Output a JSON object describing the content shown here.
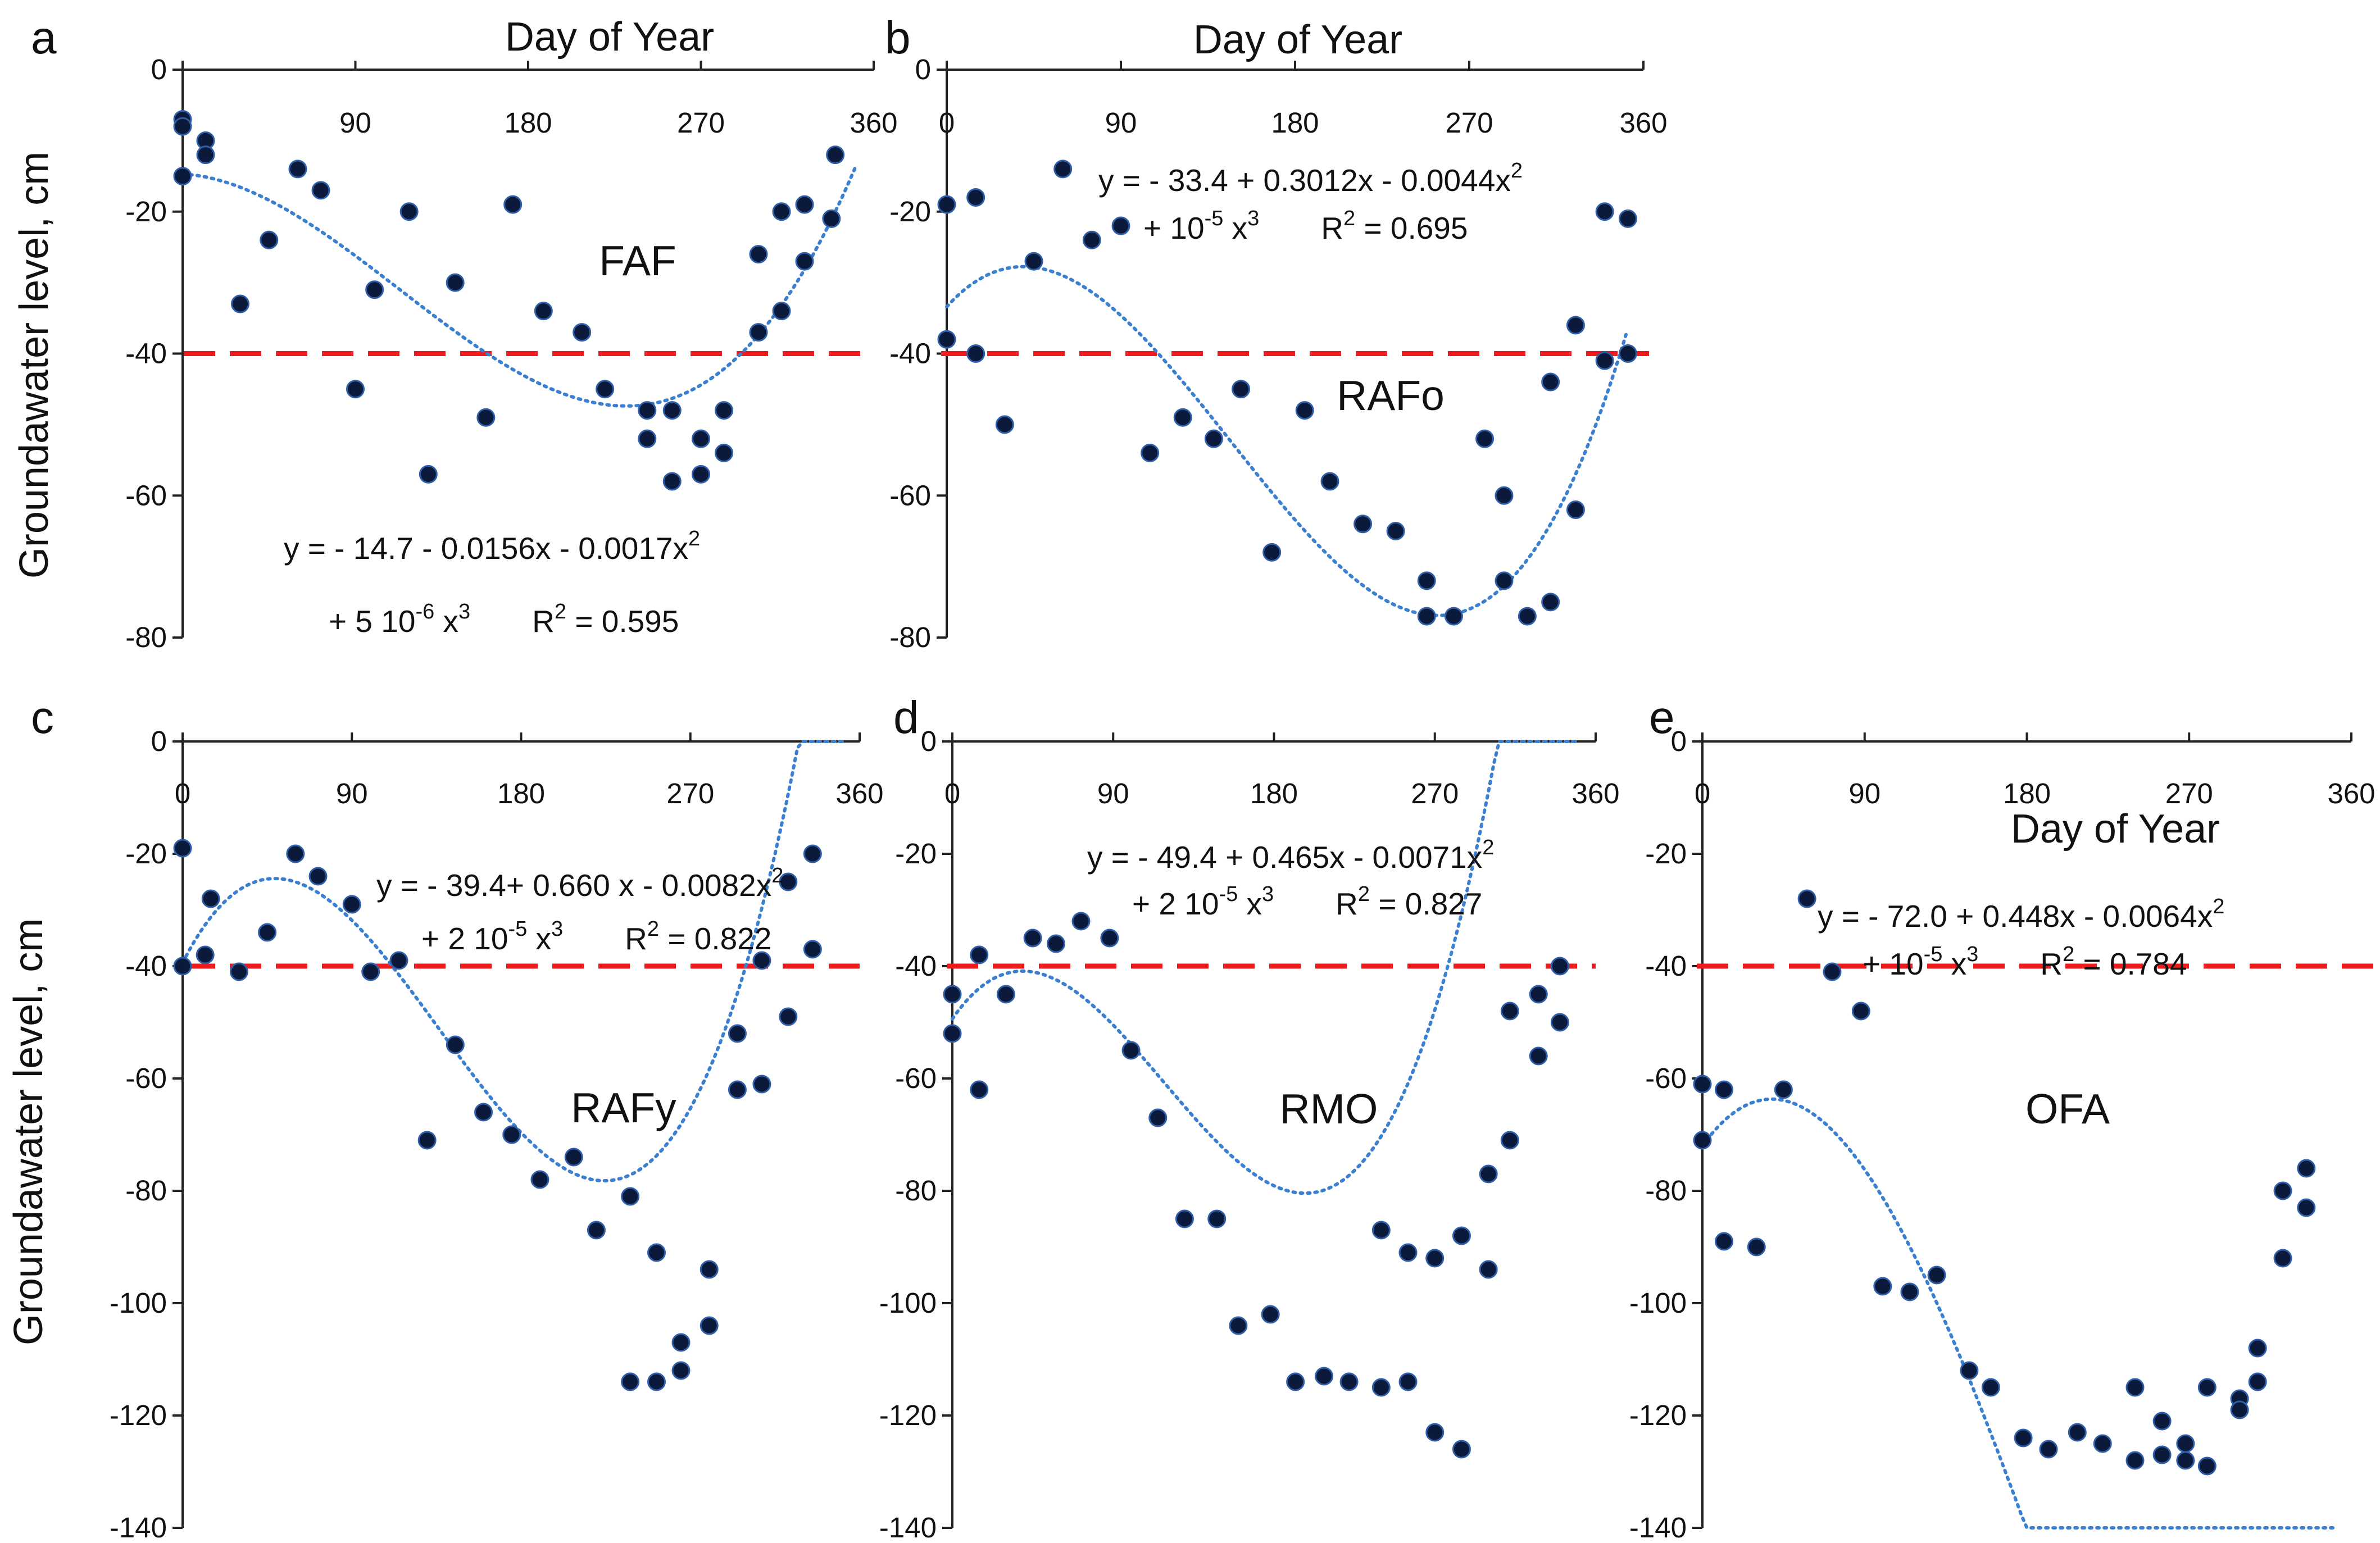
{
  "figure": {
    "y_axis_label": "Groundawater level, cm",
    "x_axis_label": "Day of Year",
    "threshold_value": -40,
    "colors": {
      "points": "#0b1a3a",
      "trend": "#3a7fd0",
      "threshold": "#ee1c1c",
      "axis": "#222222"
    }
  },
  "chart_data": [
    {
      "type": "scatter",
      "letter": "a",
      "name": "FAF",
      "xlabel": "Day of Year",
      "ylabel": "Groundawater level, cm",
      "xlim": [
        0,
        360
      ],
      "ylim": [
        -80,
        0
      ],
      "xticks": [
        0,
        90,
        180,
        270,
        360
      ],
      "yticks": [
        0,
        -20,
        -40,
        -60,
        -80
      ],
      "fit": {
        "coef": [
          -14.7,
          -0.0156,
          -0.0017,
          5e-06
        ],
        "line1": [
          "y = - 14.7  - 0.0156x   - 0.0017x",
          "2"
        ],
        "line2": [
          "+ 5 10",
          "-6",
          " x",
          "3",
          "R",
          "2",
          " = 0.595"
        ]
      },
      "points": [
        [
          0,
          -7
        ],
        [
          0,
          -8
        ],
        [
          0,
          -15
        ],
        [
          12,
          -10
        ],
        [
          12,
          -12
        ],
        [
          30,
          -33
        ],
        [
          45,
          -24
        ],
        [
          60,
          -14
        ],
        [
          72,
          -17
        ],
        [
          90,
          -45
        ],
        [
          100,
          -31
        ],
        [
          118,
          -20
        ],
        [
          128,
          -57
        ],
        [
          142,
          -30
        ],
        [
          158,
          -49
        ],
        [
          172,
          -19
        ],
        [
          188,
          -34
        ],
        [
          208,
          -37
        ],
        [
          220,
          -45
        ],
        [
          242,
          -48
        ],
        [
          242,
          -52
        ],
        [
          255,
          -58
        ],
        [
          255,
          -48
        ],
        [
          270,
          -52
        ],
        [
          270,
          -57
        ],
        [
          282,
          -48
        ],
        [
          282,
          -54
        ],
        [
          300,
          -26
        ],
        [
          300,
          -37
        ],
        [
          312,
          -20
        ],
        [
          312,
          -34
        ],
        [
          324,
          -27
        ],
        [
          324,
          -19
        ],
        [
          338,
          -21
        ],
        [
          340,
          -12
        ]
      ]
    },
    {
      "type": "scatter",
      "letter": "b",
      "name": "RAFo",
      "xlabel": "Day of Year",
      "ylabel": "",
      "xlim": [
        0,
        360
      ],
      "ylim": [
        -80,
        0
      ],
      "xticks": [
        0,
        90,
        180,
        270,
        360
      ],
      "yticks": [
        0,
        -20,
        -40,
        -60,
        -80
      ],
      "fit": {
        "coef": [
          -33.4,
          0.3012,
          -0.0044,
          1e-05
        ],
        "line1": [
          "y =  - 33.4 + 0.3012x - 0.0044x",
          "2"
        ],
        "line2": [
          "+ 10",
          "-5",
          " x",
          "3",
          "R",
          "2",
          " = 0.695"
        ]
      },
      "points": [
        [
          0,
          -19
        ],
        [
          0,
          -38
        ],
        [
          15,
          -18
        ],
        [
          15,
          -40
        ],
        [
          30,
          -50
        ],
        [
          45,
          -27
        ],
        [
          60,
          -14
        ],
        [
          75,
          -24
        ],
        [
          90,
          -22
        ],
        [
          105,
          -54
        ],
        [
          122,
          -49
        ],
        [
          138,
          -52
        ],
        [
          152,
          -45
        ],
        [
          168,
          -68
        ],
        [
          185,
          -48
        ],
        [
          198,
          -58
        ],
        [
          215,
          -64
        ],
        [
          232,
          -65
        ],
        [
          248,
          -72
        ],
        [
          248,
          -77
        ],
        [
          262,
          -77
        ],
        [
          278,
          -52
        ],
        [
          288,
          -72
        ],
        [
          288,
          -60
        ],
        [
          300,
          -77
        ],
        [
          312,
          -44
        ],
        [
          312,
          -75
        ],
        [
          325,
          -62
        ],
        [
          325,
          -36
        ],
        [
          340,
          -41
        ],
        [
          340,
          -20
        ],
        [
          352,
          -40
        ],
        [
          352,
          -21
        ]
      ]
    },
    {
      "type": "scatter",
      "letter": "c",
      "name": "RAFy",
      "xlabel": "",
      "ylabel": "Groundawater level, cm",
      "xlim": [
        0,
        360
      ],
      "ylim": [
        -140,
        0
      ],
      "xticks": [
        0,
        90,
        180,
        270,
        360
      ],
      "yticks": [
        0,
        -20,
        -40,
        -60,
        -80,
        -100,
        -120,
        -140
      ],
      "fit": {
        "coef": [
          -39.4,
          0.66,
          -0.0082,
          2e-05
        ],
        "line1": [
          "y = - 39.4+ 0.660 x  - 0.0082x",
          "2"
        ],
        "line2": [
          "+ 2 10",
          "-5",
          " x",
          "3",
          "R",
          "2",
          " = 0.822"
        ]
      },
      "points": [
        [
          0,
          -19
        ],
        [
          0,
          -40
        ],
        [
          12,
          -38
        ],
        [
          15,
          -28
        ],
        [
          30,
          -41
        ],
        [
          45,
          -34
        ],
        [
          60,
          -20
        ],
        [
          72,
          -24
        ],
        [
          90,
          -29
        ],
        [
          100,
          -41
        ],
        [
          115,
          -39
        ],
        [
          130,
          -71
        ],
        [
          145,
          -54
        ],
        [
          160,
          -66
        ],
        [
          175,
          -70
        ],
        [
          190,
          -78
        ],
        [
          208,
          -74
        ],
        [
          220,
          -87
        ],
        [
          238,
          -81
        ],
        [
          238,
          -114
        ],
        [
          252,
          -114
        ],
        [
          252,
          -91
        ],
        [
          265,
          -107
        ],
        [
          265,
          -112
        ],
        [
          280,
          -94
        ],
        [
          280,
          -104
        ],
        [
          295,
          -52
        ],
        [
          295,
          -62
        ],
        [
          308,
          -39
        ],
        [
          308,
          -61
        ],
        [
          322,
          -25
        ],
        [
          322,
          -49
        ],
        [
          335,
          -37
        ],
        [
          335,
          -20
        ]
      ]
    },
    {
      "type": "scatter",
      "letter": "d",
      "name": "RMO",
      "xlabel": "",
      "ylabel": "",
      "xlim": [
        0,
        360
      ],
      "ylim": [
        -140,
        0
      ],
      "xticks": [
        0,
        90,
        180,
        270,
        360
      ],
      "yticks": [
        0,
        -20,
        -40,
        -60,
        -80,
        -100,
        -120,
        -140
      ],
      "fit": {
        "coef": [
          -49.4,
          0.465,
          -0.0071,
          2e-05
        ],
        "line1": [
          "y = - 49.4   + 0.465x - 0.0071x",
          "2"
        ],
        "line2": [
          "+ 2 10",
          "-5",
          " x",
          "3",
          "R",
          "2",
          " = 0.827"
        ]
      },
      "points": [
        [
          0,
          -45
        ],
        [
          0,
          -52
        ],
        [
          15,
          -38
        ],
        [
          15,
          -62
        ],
        [
          30,
          -45
        ],
        [
          45,
          -35
        ],
        [
          58,
          -36
        ],
        [
          72,
          -32
        ],
        [
          88,
          -35
        ],
        [
          100,
          -55
        ],
        [
          115,
          -67
        ],
        [
          130,
          -85
        ],
        [
          148,
          -85
        ],
        [
          160,
          -104
        ],
        [
          178,
          -102
        ],
        [
          192,
          -114
        ],
        [
          208,
          -113
        ],
        [
          222,
          -114
        ],
        [
          240,
          -115
        ],
        [
          240,
          -87
        ],
        [
          255,
          -91
        ],
        [
          255,
          -114
        ],
        [
          270,
          -92
        ],
        [
          270,
          -123
        ],
        [
          285,
          -88
        ],
        [
          285,
          -126
        ],
        [
          300,
          -77
        ],
        [
          300,
          -94
        ],
        [
          312,
          -48
        ],
        [
          312,
          -71
        ],
        [
          328,
          -45
        ],
        [
          328,
          -56
        ],
        [
          340,
          -50
        ],
        [
          340,
          -40
        ]
      ]
    },
    {
      "type": "scatter",
      "letter": "e",
      "name": "OFA",
      "xlabel": "Day of Year",
      "ylabel": "",
      "xlim": [
        0,
        360
      ],
      "ylim": [
        -140,
        0
      ],
      "xticks": [
        0,
        90,
        180,
        270,
        360
      ],
      "yticks": [
        0,
        -20,
        -40,
        -60,
        -80,
        -100,
        -120,
        -140
      ],
      "fit": {
        "coef": [
          -72.0,
          0.448,
          -0.0064,
          1e-05
        ],
        "line1": [
          "y = - 72.0   + 0.448x  - 0.0064x",
          "2"
        ],
        "line2": [
          "+ 10",
          "-5",
          " x",
          "3",
          "R",
          "2",
          " = 0.784"
        ]
      },
      "points": [
        [
          0,
          -61
        ],
        [
          0,
          -71
        ],
        [
          12,
          -62
        ],
        [
          12,
          -89
        ],
        [
          30,
          -90
        ],
        [
          45,
          -62
        ],
        [
          58,
          -28
        ],
        [
          72,
          -41
        ],
        [
          88,
          -48
        ],
        [
          100,
          -97
        ],
        [
          115,
          -98
        ],
        [
          130,
          -95
        ],
        [
          148,
          -112
        ],
        [
          160,
          -115
        ],
        [
          178,
          -124
        ],
        [
          192,
          -126
        ],
        [
          208,
          -123
        ],
        [
          222,
          -125
        ],
        [
          240,
          -115
        ],
        [
          240,
          -128
        ],
        [
          255,
          -121
        ],
        [
          255,
          -127
        ],
        [
          268,
          -125
        ],
        [
          268,
          -128
        ],
        [
          280,
          -129
        ],
        [
          280,
          -115
        ],
        [
          298,
          -117
        ],
        [
          298,
          -119
        ],
        [
          308,
          -108
        ],
        [
          308,
          -114
        ],
        [
          322,
          -92
        ],
        [
          322,
          -80
        ],
        [
          335,
          -83
        ],
        [
          335,
          -76
        ]
      ]
    }
  ]
}
